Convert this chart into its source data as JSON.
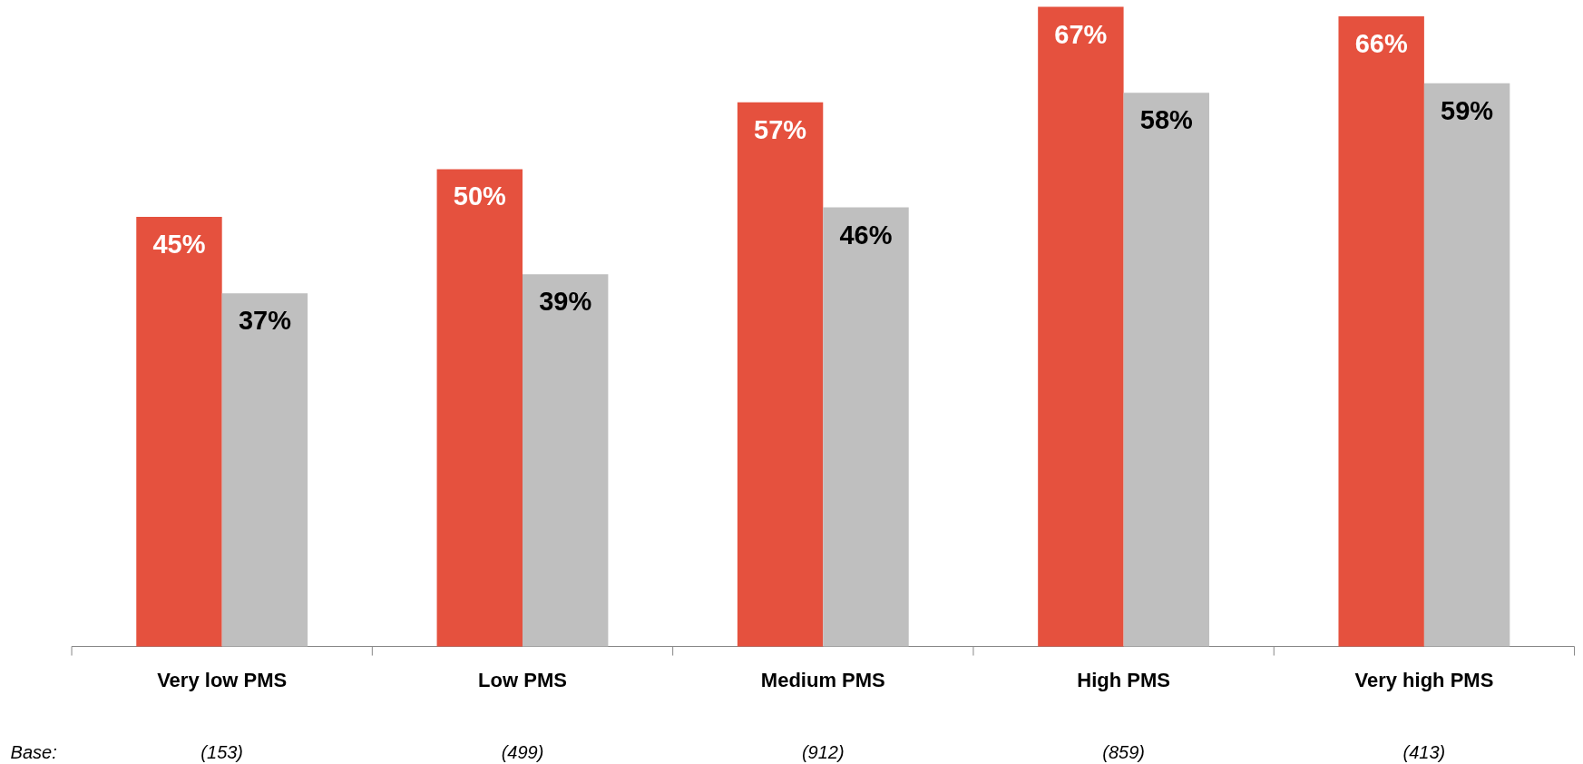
{
  "chart_data": {
    "type": "bar",
    "categories": [
      "Very low PMS",
      "Low PMS",
      "Medium PMS",
      "High PMS",
      "Very high PMS"
    ],
    "series": [
      {
        "color": "#e5513e",
        "values": [
          45,
          50,
          57,
          67,
          66
        ],
        "value_labels": [
          "45%",
          "50%",
          "57%",
          "67%",
          "66%"
        ]
      },
      {
        "color": "#bfbfbf",
        "values": [
          37,
          39,
          46,
          58,
          59
        ],
        "value_labels": [
          "37%",
          "39%",
          "46%",
          "58%",
          "59%"
        ]
      }
    ],
    "grid": false,
    "annotations": [
      "Base:",
      "(153)",
      "(499)",
      "(912)",
      "(859)",
      "(413)"
    ]
  }
}
